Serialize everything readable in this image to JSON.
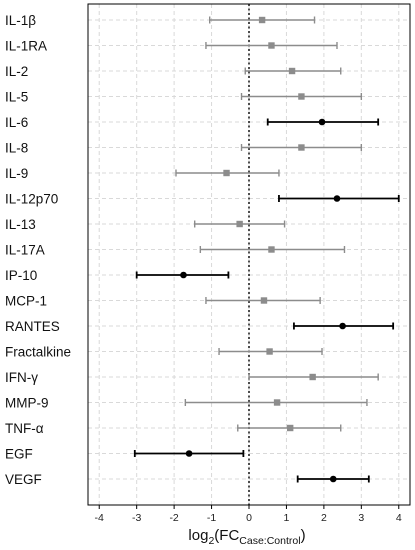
{
  "chart_data": {
    "type": "forest",
    "categories": [
      "IL-1β",
      "IL-1RA",
      "IL-2",
      "IL-5",
      "IL-6",
      "IL-8",
      "IL-9",
      "IL-12p70",
      "IL-13",
      "IL-17A",
      "IP-10",
      "MCP-1",
      "RANTES",
      "Fractalkine",
      "IFN-γ",
      "MMP-9",
      "TNF-α",
      "EGF",
      "VEGF"
    ],
    "estimates": [
      0.35,
      0.6,
      1.15,
      1.4,
      1.95,
      1.4,
      -0.6,
      2.35,
      -0.25,
      0.6,
      -1.75,
      0.4,
      2.5,
      0.55,
      1.7,
      0.75,
      1.1,
      -1.6,
      2.25
    ],
    "ci_lower": [
      -1.05,
      -1.15,
      -0.1,
      -0.2,
      0.5,
      -0.2,
      -1.95,
      0.8,
      -1.45,
      -1.3,
      -3.0,
      -1.15,
      1.2,
      -0.8,
      0.0,
      -1.7,
      -0.3,
      -3.05,
      1.3
    ],
    "ci_upper": [
      1.75,
      2.35,
      2.45,
      3.0,
      3.45,
      3.0,
      0.8,
      4.0,
      0.95,
      2.55,
      -0.55,
      1.9,
      3.85,
      1.95,
      3.45,
      3.15,
      2.45,
      -0.15,
      3.2
    ],
    "significant": [
      false,
      false,
      false,
      false,
      true,
      false,
      false,
      true,
      false,
      false,
      true,
      false,
      true,
      false,
      false,
      false,
      false,
      true,
      true
    ],
    "xlim": [
      -4.3,
      4.3
    ],
    "xticks": [
      -4,
      -3,
      -2,
      -1,
      0,
      1,
      2,
      3,
      4
    ],
    "xlabel_main": "log",
    "xlabel_sub1": "2",
    "xlabel_mid": "(FC",
    "xlabel_sub2": "Case:Control",
    "xlabel_end": ")",
    "reference_line": 0,
    "grid": true,
    "colors": {
      "significant": "#000000",
      "nonsignificant": "#8c8c8c",
      "grid": "#d9d9d9",
      "frame": "#000000"
    }
  }
}
